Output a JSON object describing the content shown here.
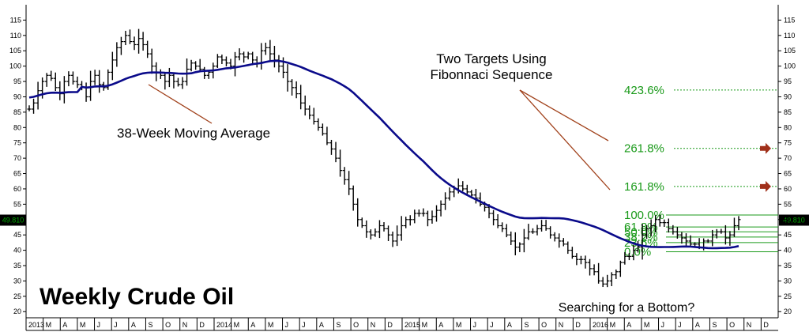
{
  "chart_data": {
    "type": "ohlc",
    "title": "Weekly Crude Oil",
    "subtitle": "Searching for a Bottom?",
    "ylim": [
      18,
      120
    ],
    "y_ticks": [
      20,
      25,
      30,
      35,
      40,
      45,
      50,
      55,
      60,
      65,
      70,
      75,
      80,
      85,
      90,
      95,
      100,
      105,
      110,
      115
    ],
    "y_tick_labels": [
      "20",
      "25",
      "30",
      "35",
      "40",
      "45",
      "50",
      "55",
      "60",
      "65",
      "70",
      "75",
      "80",
      "85",
      "90",
      "95",
      "100",
      "105",
      "110",
      "115"
    ],
    "last_price_label": "49.810",
    "last_price": 49.81,
    "x_labels": [
      "2013",
      "M",
      "A",
      "M",
      "J",
      "J",
      "A",
      "S",
      "O",
      "N",
      "D",
      "2014",
      "M",
      "A",
      "M",
      "J",
      "J",
      "A",
      "S",
      "O",
      "N",
      "D",
      "2015",
      "M",
      "A",
      "M",
      "J",
      "J",
      "A",
      "S",
      "O",
      "N",
      "D",
      "2016",
      "M",
      "A",
      "M",
      "J",
      "J",
      "A",
      "S",
      "O",
      "N",
      "D"
    ],
    "series": [
      {
        "name": "Weekly Crude Oil",
        "color": "#000000",
        "closes": [
          86,
          88,
          92,
          95,
          97,
          96,
          93,
          91,
          95,
          97,
          95,
          94,
          93,
          90,
          95,
          97,
          94,
          93,
          98,
          102,
          106,
          108,
          110,
          108,
          107,
          109,
          107,
          104,
          100,
          98,
          97,
          95,
          97,
          95,
          94,
          95,
          99,
          101,
          100,
          99,
          97,
          98,
          100,
          103,
          102,
          101,
          100,
          103,
          104,
          103,
          104,
          102,
          101,
          105,
          106,
          104,
          102,
          100,
          98,
          95,
          93,
          91,
          88,
          86,
          84,
          82,
          80,
          78,
          75,
          73,
          70,
          66,
          63,
          60,
          55,
          50,
          48,
          46,
          45,
          46,
          48,
          47,
          45,
          43,
          45,
          48,
          50,
          50,
          52,
          52,
          52,
          50,
          51,
          53,
          55,
          57,
          59,
          60,
          61,
          60,
          59,
          58,
          57,
          55,
          54,
          52,
          50,
          48,
          47,
          45,
          43,
          41,
          42,
          44,
          46,
          46,
          47,
          48,
          47,
          45,
          44,
          43,
          42,
          40,
          38,
          37,
          37,
          36,
          34,
          33,
          30,
          29,
          30,
          32,
          33,
          36,
          38,
          38,
          40,
          41,
          45,
          47,
          48,
          50,
          49,
          49,
          47,
          46,
          45,
          44,
          43,
          42,
          42,
          41,
          43,
          43,
          45,
          46,
          46,
          44,
          45,
          48,
          50
        ]
      },
      {
        "name": "38-Week Moving Average",
        "color": "#0a0a8a"
      }
    ],
    "annotations": [
      {
        "text": "38-Week Moving Average",
        "color": "#000000"
      },
      {
        "text": "Two Targets Using",
        "color": "#000000"
      },
      {
        "text": "Fibonnaci Sequence",
        "color": "#000000"
      }
    ],
    "fib_levels": [
      {
        "label": "423.6%",
        "value": 92.2,
        "target": false
      },
      {
        "label": "261.8%",
        "value": 73.2,
        "target": true
      },
      {
        "label": "161.8%",
        "value": 60.8,
        "target": true
      },
      {
        "label": "100.0%",
        "value": 51.5,
        "target": false
      },
      {
        "label": "61.8%",
        "value": 47.6,
        "target": false
      },
      {
        "label": "50.0%",
        "value": 46.0,
        "target": false
      },
      {
        "label": "38.2%",
        "value": 44.3,
        "target": false
      },
      {
        "label": "23.6%",
        "value": 42.5,
        "target": false
      },
      {
        "label": "0.0%",
        "value": 39.5,
        "target": false
      }
    ],
    "colors": {
      "price": "#000000",
      "moving_average": "#0a0a8a",
      "fib": "#1a9a1a",
      "annotation_lines": "#a0401a",
      "target_arrows": "#a0301a",
      "price_tag": "#00aa00",
      "grid": "#bbbbbb"
    },
    "grid": true
  }
}
